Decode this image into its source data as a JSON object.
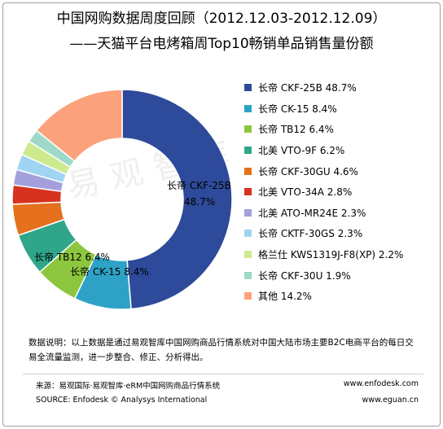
{
  "title_line1": "中国网购数据周度回顾（2012.12.03-2012.12.09）",
  "title_line2": "——天猫平台电烤箱周Top10畅销单品销售量份额",
  "watermark": "易观智库",
  "chart_data": {
    "type": "pie",
    "subtype": "donut",
    "slices": [
      {
        "label": "长帝 CKF-25B",
        "value": 48.7,
        "color": "#2e4a9a",
        "legend": "长帝 CKF-25B 48.7%",
        "data_label": "长帝 CKF-25B",
        "data_value": "48.7%"
      },
      {
        "label": "长帝 CK-15",
        "value": 8.4,
        "color": "#2ea2c6",
        "legend": "长帝 CK-15 8.4%",
        "data_label": "长帝 CK-15 8.4%"
      },
      {
        "label": "长帝 TB12",
        "value": 6.4,
        "color": "#8cc63e",
        "legend": "长帝 TB12 6.4%",
        "data_label": "长帝 TB12 6.4%"
      },
      {
        "label": "北美 VTO-9F",
        "value": 6.2,
        "color": "#2fa68a",
        "legend": "北美 VTO-9F 6.2%"
      },
      {
        "label": "长帝 CKF-30GU",
        "value": 4.6,
        "color": "#e5701e",
        "legend": "长帝 CKF-30GU 4.6%"
      },
      {
        "label": "北美 VTO-34A",
        "value": 2.8,
        "color": "#d7311f",
        "legend": "北美 VTO-34A 2.8%"
      },
      {
        "label": "北美 ATO-MR24E",
        "value": 2.3,
        "color": "#a3a0dc",
        "legend": "北美 ATO-MR24E 2.3%"
      },
      {
        "label": "长帝 CKTF-30GS",
        "value": 2.3,
        "color": "#9fd4f2",
        "legend": "长帝 CKTF-30GS 2.3%"
      },
      {
        "label": "格兰仕 KWS1319J-F8(XP)",
        "value": 2.2,
        "color": "#cdea8f",
        "legend": "格兰仕 KWS1319J-F8(XP)  2.2%"
      },
      {
        "label": "长帝 CKF-30U",
        "value": 1.9,
        "color": "#9ed9c8",
        "legend": "长帝 CKF-30U 1.9%"
      },
      {
        "label": "其他",
        "value": 14.2,
        "color": "#fba27c",
        "legend": "其他 14.2%"
      }
    ]
  },
  "note": "数据说明：以上数据是通过易观智库中国网购商品行情系统对中国大陆市场主要B2C电商平台的每日交易全流量监测，进一步整合、修正、分析得出。",
  "footer": {
    "source_cn": "来源：易观国际·易观智库·eRM中国网购商品行情系统",
    "source_en": "SOURCE: Enfodesk © Analysys International",
    "site1": "www.enfodesk.com",
    "site2": "www.eguan.cn"
  }
}
